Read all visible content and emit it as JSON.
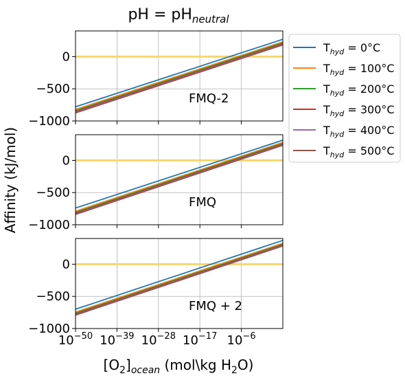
{
  "figure": {
    "title": {
      "base": "pH = pH",
      "sub": "neutral"
    },
    "ylabel": "Affinity (kJ/mol)",
    "xlabel": {
      "p1": "[O",
      "s1": "2",
      "p2": "]",
      "s2": "ocean",
      "p3": " (mol\\kg H",
      "s3": "2",
      "p4": "O)"
    }
  },
  "chart_data": [
    {
      "type": "line",
      "annotation": "FMQ-2",
      "xscale": "log",
      "xlim_exp": [
        -50,
        5
      ],
      "ylim": [
        -1000,
        400
      ],
      "grid": true,
      "yticks": [
        {
          "value": 0,
          "label": "0"
        },
        {
          "value": -500,
          "label": "−500"
        },
        {
          "value": -1000,
          "label": "−1000"
        }
      ],
      "reference_line": {
        "y": 0,
        "color": "#f5d76e"
      },
      "series": [
        {
          "name": "0°C",
          "color": "#1f77b4",
          "x_exp": [
            -50,
            5
          ],
          "y": [
            -780,
            270
          ]
        },
        {
          "name": "100°C",
          "color": "#ff7f0e",
          "x_exp": [
            -50,
            5
          ],
          "y": [
            -820,
            230
          ]
        },
        {
          "name": "200°C",
          "color": "#2ca02c",
          "x_exp": [
            -50,
            5
          ],
          "y": [
            -840,
            215
          ]
        },
        {
          "name": "300°C",
          "color": "#d62728",
          "x_exp": [
            -50,
            5
          ],
          "y": [
            -855,
            200
          ]
        },
        {
          "name": "400°C",
          "color": "#9467bd",
          "x_exp": [
            -50,
            5
          ],
          "y": [
            -865,
            190
          ]
        },
        {
          "name": "500°C",
          "color": "#8c564b",
          "x_exp": [
            -50,
            5
          ],
          "y": [
            -875,
            182
          ]
        }
      ]
    },
    {
      "type": "line",
      "annotation": "FMQ",
      "xscale": "log",
      "xlim_exp": [
        -50,
        5
      ],
      "ylim": [
        -1000,
        400
      ],
      "grid": true,
      "yticks": [
        {
          "value": 0,
          "label": "0"
        },
        {
          "value": -500,
          "label": "−500"
        },
        {
          "value": -1000,
          "label": "−1000"
        }
      ],
      "reference_line": {
        "y": 0,
        "color": "#f5d76e"
      },
      "series": [
        {
          "name": "0°C",
          "color": "#1f77b4",
          "x_exp": [
            -50,
            5
          ],
          "y": [
            -740,
            315
          ]
        },
        {
          "name": "100°C",
          "color": "#ff7f0e",
          "x_exp": [
            -50,
            5
          ],
          "y": [
            -790,
            280
          ]
        },
        {
          "name": "200°C",
          "color": "#2ca02c",
          "x_exp": [
            -50,
            5
          ],
          "y": [
            -808,
            265
          ]
        },
        {
          "name": "300°C",
          "color": "#d62728",
          "x_exp": [
            -50,
            5
          ],
          "y": [
            -822,
            252
          ]
        },
        {
          "name": "400°C",
          "color": "#9467bd",
          "x_exp": [
            -50,
            5
          ],
          "y": [
            -832,
            242
          ]
        },
        {
          "name": "500°C",
          "color": "#8c564b",
          "x_exp": [
            -50,
            5
          ],
          "y": [
            -840,
            235
          ]
        }
      ]
    },
    {
      "type": "line",
      "annotation": "FMQ + 2",
      "xscale": "log",
      "xlim_exp": [
        -50,
        5
      ],
      "ylim": [
        -1000,
        400
      ],
      "grid": true,
      "yticks": [
        {
          "value": 0,
          "label": "0"
        },
        {
          "value": -500,
          "label": "−500"
        },
        {
          "value": -1000,
          "label": "−1000"
        }
      ],
      "xticks": [
        {
          "exp": -50,
          "label": "−50"
        },
        {
          "exp": -39,
          "label": "−39"
        },
        {
          "exp": -28,
          "label": "−28"
        },
        {
          "exp": -17,
          "label": "−17"
        },
        {
          "exp": -6,
          "label": "−6"
        }
      ],
      "xtick_base": "10",
      "reference_line": {
        "y": 0,
        "color": "#f5d76e"
      },
      "series": [
        {
          "name": "0°C",
          "color": "#1f77b4",
          "x_exp": [
            -50,
            5
          ],
          "y": [
            -700,
            370
          ]
        },
        {
          "name": "100°C",
          "color": "#ff7f0e",
          "x_exp": [
            -50,
            5
          ],
          "y": [
            -745,
            325
          ]
        },
        {
          "name": "200°C",
          "color": "#2ca02c",
          "x_exp": [
            -50,
            5
          ],
          "y": [
            -762,
            310
          ]
        },
        {
          "name": "300°C",
          "color": "#d62728",
          "x_exp": [
            -50,
            5
          ],
          "y": [
            -775,
            298
          ]
        },
        {
          "name": "400°C",
          "color": "#9467bd",
          "x_exp": [
            -50,
            5
          ],
          "y": [
            -785,
            290
          ]
        },
        {
          "name": "500°C",
          "color": "#8c564b",
          "x_exp": [
            -50,
            5
          ],
          "y": [
            -792,
            283
          ]
        }
      ]
    }
  ],
  "legend": {
    "placement": "right",
    "prefix": "T",
    "sub": "hyd",
    "items": [
      {
        "label": " = 0°C",
        "color": "#1f77b4"
      },
      {
        "label": " = 100°C",
        "color": "#ff7f0e"
      },
      {
        "label": " = 200°C",
        "color": "#2ca02c"
      },
      {
        "label": " = 300°C",
        "color": "#d62728"
      },
      {
        "label": " = 400°C",
        "color": "#9467bd"
      },
      {
        "label": " = 500°C",
        "color": "#8c564b"
      }
    ]
  }
}
